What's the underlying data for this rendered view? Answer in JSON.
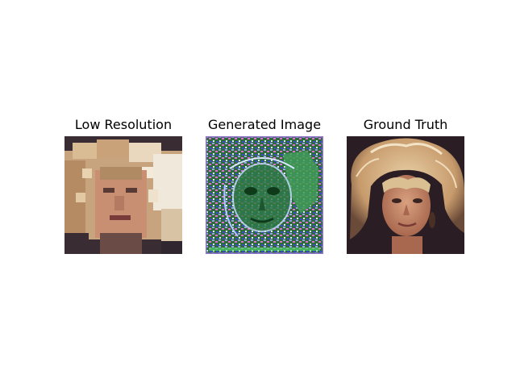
{
  "panels": [
    {
      "title": "Low Resolution",
      "icon": "low-resolution-face-image"
    },
    {
      "title": "Generated Image",
      "icon": "generated-face-image"
    },
    {
      "title": "Ground Truth",
      "icon": "ground-truth-face-image"
    }
  ]
}
